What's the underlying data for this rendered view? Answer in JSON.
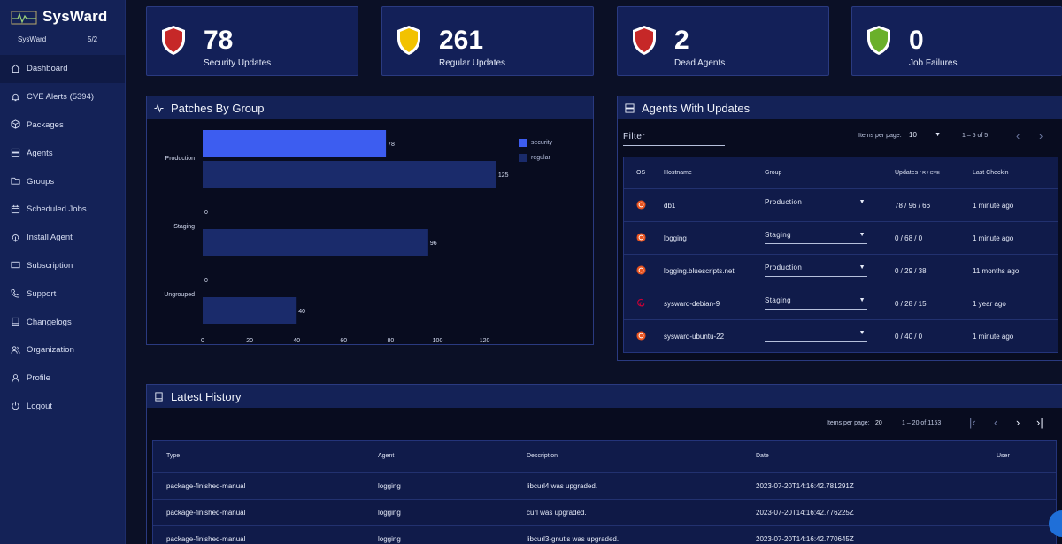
{
  "brand": {
    "name": "SysWard"
  },
  "org": {
    "name": "SysWard",
    "count": "5/2"
  },
  "nav": [
    {
      "label": "Dashboard",
      "icon": "home-icon"
    },
    {
      "label": "CVE Alerts (5394)",
      "icon": "bell-icon"
    },
    {
      "label": "Packages",
      "icon": "box-icon"
    },
    {
      "label": "Agents",
      "icon": "server-icon"
    },
    {
      "label": "Groups",
      "icon": "folder-icon"
    },
    {
      "label": "Scheduled Jobs",
      "icon": "calendar-icon"
    },
    {
      "label": "Install Agent",
      "icon": "download-icon"
    },
    {
      "label": "Subscription",
      "icon": "card-icon"
    },
    {
      "label": "Support",
      "icon": "phone-icon"
    },
    {
      "label": "Changelogs",
      "icon": "book-icon"
    },
    {
      "label": "Organization",
      "icon": "users-icon"
    },
    {
      "label": "Profile",
      "icon": "user-icon"
    },
    {
      "label": "Logout",
      "icon": "power-icon"
    }
  ],
  "stats": [
    {
      "value": "78",
      "label": "Security Updates",
      "color": "#c62828"
    },
    {
      "value": "261",
      "label": "Regular Updates",
      "color": "#f2c200"
    },
    {
      "value": "2",
      "label": "Dead Agents",
      "color": "#c62828"
    },
    {
      "value": "0",
      "label": "Job Failures",
      "color": "#6ab02a"
    }
  ],
  "patches": {
    "title": "Patches By Group",
    "legend": [
      "security",
      "regular"
    ]
  },
  "chart_data": {
    "type": "bar",
    "orientation": "horizontal",
    "title": "Patches By Group",
    "categories": [
      "Production",
      "Staging",
      "Ungrouped"
    ],
    "series": [
      {
        "name": "security",
        "values": [
          78,
          0,
          0
        ],
        "color": "#3d5df0"
      },
      {
        "name": "regular",
        "values": [
          125,
          96,
          40
        ],
        "color": "#1a2b6b"
      }
    ],
    "xlim": [
      0,
      125
    ],
    "xticks": [
      0,
      20,
      40,
      60,
      80,
      100,
      120
    ],
    "grid": false,
    "legend_position": "top-right"
  },
  "agents": {
    "title": "Agents With Updates",
    "filter_label": "Filter",
    "items_per_page_label": "Items per page:",
    "items_per_page": "10",
    "range": "1 – 5 of 5",
    "headers": {
      "os": "OS",
      "hostname": "Hostname",
      "group": "Group",
      "updates": "Updates",
      "updates_sub": "/ R / CVE",
      "checkin": "Last Checkin"
    },
    "rows": [
      {
        "os": "ubuntu-icon",
        "hostname": "db1",
        "group": "Production",
        "updates": "78 / 96 / 66",
        "checkin": "1 minute ago"
      },
      {
        "os": "ubuntu-icon",
        "hostname": "logging",
        "group": "Staging",
        "updates": "0 / 68 / 0",
        "checkin": "1 minute ago"
      },
      {
        "os": "ubuntu-icon",
        "hostname": "logging.bluescripts.net",
        "group": "Production",
        "updates": "0 / 29 / 38",
        "checkin": "11 months ago"
      },
      {
        "os": "debian-icon",
        "hostname": "sysward-debian-9",
        "group": "Staging",
        "updates": "0 / 28 / 15",
        "checkin": "1 year ago"
      },
      {
        "os": "ubuntu-icon",
        "hostname": "sysward-ubuntu-22",
        "group": "",
        "updates": "0 / 40 / 0",
        "checkin": "1 minute ago"
      }
    ],
    "colors": {
      "ubuntu": "#e95420",
      "debian": "#c70036"
    }
  },
  "history": {
    "title": "Latest History",
    "items_per_page_label": "Items per page:",
    "items_per_page": "20",
    "range": "1 – 20 of 1153",
    "headers": {
      "type": "Type",
      "agent": "Agent",
      "description": "Description",
      "date": "Date",
      "user": "User"
    },
    "rows": [
      {
        "type": "package-finished-manual",
        "agent": "logging",
        "description": "libcurl4 was upgraded.",
        "date": "2023-07-20T14:16:42.781291Z",
        "user": ""
      },
      {
        "type": "package-finished-manual",
        "agent": "logging",
        "description": "curl was upgraded.",
        "date": "2023-07-20T14:16:42.776225Z",
        "user": ""
      },
      {
        "type": "package-finished-manual",
        "agent": "logging",
        "description": "libcurl3-gnutls was upgraded.",
        "date": "2023-07-20T14:16:42.770645Z",
        "user": ""
      }
    ]
  }
}
